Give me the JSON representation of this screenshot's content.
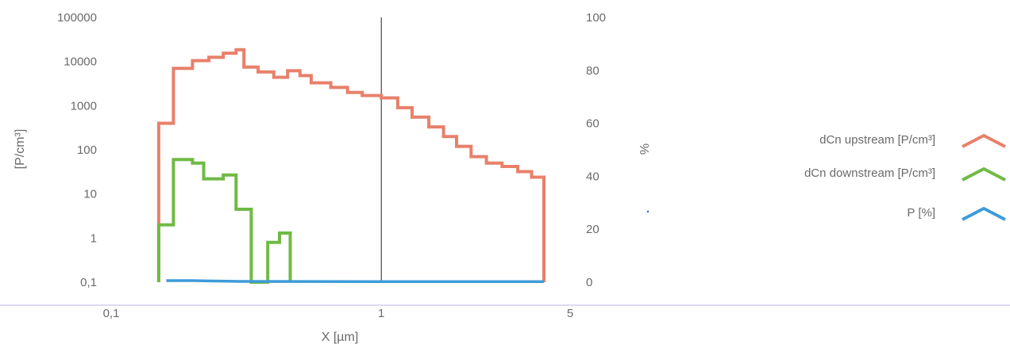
{
  "chart_data": {
    "type": "line",
    "title": "",
    "xlabel": "X [µm]",
    "ylabel_left": "[P/cm³]",
    "ylabel_right": "%",
    "x_scale": "log",
    "y_left_scale": "log",
    "xlim": [
      0.1,
      5
    ],
    "ylim_left": [
      0.1,
      100000
    ],
    "ylim_right": [
      0,
      100
    ],
    "x_ticks": [
      {
        "value": 0.1,
        "label": "0,1"
      },
      {
        "value": 1,
        "label": "1"
      },
      {
        "value": 5,
        "label": "5"
      }
    ],
    "y_left_ticks": [
      {
        "value": 100000,
        "label": "100000"
      },
      {
        "value": 10000,
        "label": "10000"
      },
      {
        "value": 1000,
        "label": "1000"
      },
      {
        "value": 100,
        "label": "100"
      },
      {
        "value": 10,
        "label": "10"
      },
      {
        "value": 1,
        "label": "1"
      },
      {
        "value": 0.1,
        "label": "0,1"
      }
    ],
    "y_right_ticks": [
      {
        "value": 100,
        "label": "100"
      },
      {
        "value": 80,
        "label": "80"
      },
      {
        "value": 60,
        "label": "60"
      },
      {
        "value": 40,
        "label": "40"
      },
      {
        "value": 20,
        "label": "20"
      },
      {
        "value": 0,
        "label": "0"
      }
    ],
    "vertical_line_x": 1,
    "legend_position": "right",
    "series": [
      {
        "name": "dCn upstream [P/cm³]",
        "axis": "left",
        "style": "step",
        "color": "#e8806a",
        "points": [
          [
            0.15,
            0.1
          ],
          [
            0.15,
            400
          ],
          [
            0.17,
            400
          ],
          [
            0.17,
            7000
          ],
          [
            0.2,
            7000
          ],
          [
            0.2,
            10500
          ],
          [
            0.23,
            10500
          ],
          [
            0.23,
            12500
          ],
          [
            0.26,
            12500
          ],
          [
            0.26,
            15500
          ],
          [
            0.29,
            15500
          ],
          [
            0.29,
            18500
          ],
          [
            0.31,
            18500
          ],
          [
            0.31,
            7500
          ],
          [
            0.35,
            7500
          ],
          [
            0.35,
            5800
          ],
          [
            0.4,
            5800
          ],
          [
            0.4,
            4400
          ],
          [
            0.45,
            4400
          ],
          [
            0.45,
            6200
          ],
          [
            0.5,
            6200
          ],
          [
            0.5,
            4800
          ],
          [
            0.55,
            4800
          ],
          [
            0.55,
            3300
          ],
          [
            0.65,
            3300
          ],
          [
            0.65,
            2600
          ],
          [
            0.75,
            2600
          ],
          [
            0.75,
            2000
          ],
          [
            0.85,
            2000
          ],
          [
            0.85,
            1700
          ],
          [
            1.0,
            1700
          ],
          [
            1.0,
            1500
          ],
          [
            1.15,
            1500
          ],
          [
            1.15,
            900
          ],
          [
            1.3,
            900
          ],
          [
            1.3,
            550
          ],
          [
            1.5,
            550
          ],
          [
            1.5,
            330
          ],
          [
            1.7,
            330
          ],
          [
            1.7,
            200
          ],
          [
            1.9,
            200
          ],
          [
            1.9,
            120
          ],
          [
            2.15,
            120
          ],
          [
            2.15,
            70
          ],
          [
            2.45,
            70
          ],
          [
            2.45,
            50
          ],
          [
            2.8,
            50
          ],
          [
            2.8,
            42
          ],
          [
            3.2,
            42
          ],
          [
            3.2,
            32
          ],
          [
            3.6,
            32
          ],
          [
            3.6,
            24
          ],
          [
            4.0,
            24
          ],
          [
            4.0,
            0.1
          ]
        ]
      },
      {
        "name": "dCn downstream [P/cm³]",
        "axis": "left",
        "style": "step",
        "color": "#6fba45",
        "points": [
          [
            0.15,
            0.1
          ],
          [
            0.15,
            2
          ],
          [
            0.17,
            2
          ],
          [
            0.17,
            60
          ],
          [
            0.2,
            60
          ],
          [
            0.2,
            50
          ],
          [
            0.22,
            50
          ],
          [
            0.22,
            22
          ],
          [
            0.26,
            22
          ],
          [
            0.26,
            27
          ],
          [
            0.29,
            27
          ],
          [
            0.29,
            4.5
          ],
          [
            0.33,
            4.5
          ],
          [
            0.33,
            0.1
          ],
          [
            0.38,
            0.1
          ],
          [
            0.38,
            0.8
          ],
          [
            0.42,
            0.8
          ],
          [
            0.42,
            1.3
          ],
          [
            0.46,
            1.3
          ],
          [
            0.46,
            0.1
          ]
        ]
      },
      {
        "name": "P [%]",
        "axis": "right",
        "style": "line",
        "color": "#3f9bd8",
        "points": [
          [
            0.16,
            0.6
          ],
          [
            0.2,
            0.6
          ],
          [
            0.3,
            0.3
          ],
          [
            1.0,
            0.2
          ],
          [
            4.0,
            0.2
          ]
        ]
      }
    ]
  }
}
